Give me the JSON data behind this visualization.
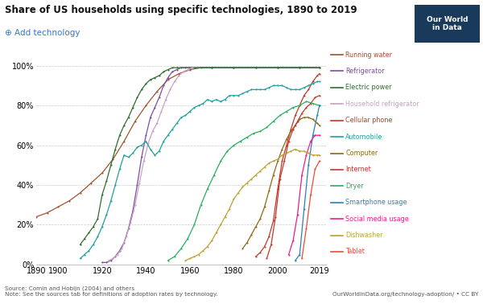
{
  "title": "Share of US households using specific technologies, 1890 to 2019",
  "source_text": "Source: Comin and Hobijn (2004) and others\nNote: See the sources tab for definitions of adoption rates by technology.",
  "url_text": "OurWorldInData.org/technology-adoption/ • CC BY",
  "add_tech_text": "⊕ Add technology",
  "background_color": "#ffffff",
  "technologies": [
    {
      "name": "Running water",
      "color": "#a0522d",
      "data": [
        [
          1890,
          24
        ],
        [
          1895,
          26
        ],
        [
          1900,
          29
        ],
        [
          1905,
          32
        ],
        [
          1910,
          36
        ],
        [
          1915,
          41
        ],
        [
          1920,
          46
        ],
        [
          1925,
          53
        ],
        [
          1930,
          62
        ],
        [
          1935,
          72
        ],
        [
          1940,
          80
        ],
        [
          1945,
          87
        ],
        [
          1950,
          93
        ],
        [
          1955,
          96
        ],
        [
          1960,
          98
        ],
        [
          1965,
          99
        ],
        [
          1970,
          99
        ],
        [
          1980,
          99
        ],
        [
          1990,
          99
        ],
        [
          2000,
          99
        ],
        [
          2010,
          99
        ],
        [
          2019,
          99
        ]
      ]
    },
    {
      "name": "Refrigerator",
      "color": "#7b4f9e",
      "data": [
        [
          1920,
          1
        ],
        [
          1922,
          1
        ],
        [
          1924,
          2
        ],
        [
          1926,
          4
        ],
        [
          1928,
          7
        ],
        [
          1930,
          11
        ],
        [
          1932,
          18
        ],
        [
          1934,
          27
        ],
        [
          1936,
          40
        ],
        [
          1938,
          54
        ],
        [
          1940,
          65
        ],
        [
          1942,
          74
        ],
        [
          1944,
          79
        ],
        [
          1946,
          84
        ],
        [
          1948,
          90
        ],
        [
          1950,
          94
        ],
        [
          1952,
          97
        ],
        [
          1954,
          98
        ],
        [
          1956,
          99
        ],
        [
          1958,
          99
        ],
        [
          1960,
          99
        ],
        [
          1970,
          99
        ],
        [
          1980,
          99
        ],
        [
          1990,
          99
        ],
        [
          2000,
          99
        ],
        [
          2010,
          99
        ],
        [
          2019,
          99
        ]
      ]
    },
    {
      "name": "Electric power",
      "color": "#2d6e2d",
      "data": [
        [
          1910,
          10
        ],
        [
          1912,
          13
        ],
        [
          1914,
          16
        ],
        [
          1916,
          19
        ],
        [
          1918,
          23
        ],
        [
          1920,
          35
        ],
        [
          1922,
          42
        ],
        [
          1924,
          50
        ],
        [
          1926,
          58
        ],
        [
          1928,
          65
        ],
        [
          1930,
          70
        ],
        [
          1932,
          74
        ],
        [
          1934,
          79
        ],
        [
          1936,
          84
        ],
        [
          1938,
          88
        ],
        [
          1940,
          91
        ],
        [
          1942,
          93
        ],
        [
          1944,
          94
        ],
        [
          1946,
          95
        ],
        [
          1948,
          97
        ],
        [
          1950,
          98
        ],
        [
          1952,
          99
        ],
        [
          1954,
          99
        ],
        [
          1960,
          99
        ],
        [
          1970,
          99
        ],
        [
          1980,
          99
        ],
        [
          1990,
          99
        ],
        [
          2000,
          99
        ],
        [
          2010,
          99
        ],
        [
          2019,
          99
        ]
      ]
    },
    {
      "name": "Household refrigerator",
      "color": "#c8a0c8",
      "data": [
        [
          1923,
          2
        ],
        [
          1925,
          3
        ],
        [
          1927,
          5
        ],
        [
          1929,
          8
        ],
        [
          1931,
          14
        ],
        [
          1933,
          21
        ],
        [
          1935,
          30
        ],
        [
          1937,
          41
        ],
        [
          1939,
          52
        ],
        [
          1941,
          61
        ],
        [
          1943,
          67
        ],
        [
          1945,
          71
        ],
        [
          1947,
          77
        ],
        [
          1949,
          83
        ],
        [
          1951,
          88
        ],
        [
          1953,
          92
        ],
        [
          1955,
          95
        ],
        [
          1957,
          97
        ],
        [
          1959,
          98
        ],
        [
          1961,
          99
        ]
      ]
    },
    {
      "name": "Cellular phone",
      "color": "#c0392b",
      "data": [
        [
          1990,
          4
        ],
        [
          1992,
          6
        ],
        [
          1994,
          9
        ],
        [
          1996,
          14
        ],
        [
          1998,
          22
        ],
        [
          2000,
          38
        ],
        [
          2002,
          52
        ],
        [
          2004,
          60
        ],
        [
          2006,
          68
        ],
        [
          2008,
          75
        ],
        [
          2010,
          80
        ],
        [
          2012,
          85
        ],
        [
          2014,
          88
        ],
        [
          2016,
          92
        ],
        [
          2018,
          95
        ],
        [
          2019,
          96
        ]
      ]
    },
    {
      "name": "Automobile",
      "color": "#20a0a0",
      "data": [
        [
          1910,
          3
        ],
        [
          1912,
          5
        ],
        [
          1914,
          7
        ],
        [
          1916,
          10
        ],
        [
          1918,
          14
        ],
        [
          1920,
          19
        ],
        [
          1922,
          25
        ],
        [
          1924,
          32
        ],
        [
          1926,
          40
        ],
        [
          1928,
          48
        ],
        [
          1930,
          55
        ],
        [
          1932,
          54
        ],
        [
          1934,
          56
        ],
        [
          1936,
          59
        ],
        [
          1938,
          60
        ],
        [
          1940,
          62
        ],
        [
          1942,
          58
        ],
        [
          1944,
          55
        ],
        [
          1946,
          57
        ],
        [
          1948,
          62
        ],
        [
          1950,
          65
        ],
        [
          1952,
          68
        ],
        [
          1954,
          71
        ],
        [
          1956,
          74
        ],
        [
          1958,
          75
        ],
        [
          1960,
          77
        ],
        [
          1962,
          79
        ],
        [
          1964,
          80
        ],
        [
          1966,
          81
        ],
        [
          1968,
          83
        ],
        [
          1970,
          82
        ],
        [
          1972,
          83
        ],
        [
          1974,
          82
        ],
        [
          1976,
          83
        ],
        [
          1978,
          85
        ],
        [
          1980,
          85
        ],
        [
          1982,
          85
        ],
        [
          1984,
          86
        ],
        [
          1986,
          87
        ],
        [
          1988,
          88
        ],
        [
          1990,
          88
        ],
        [
          1992,
          88
        ],
        [
          1994,
          88
        ],
        [
          1996,
          89
        ],
        [
          1998,
          90
        ],
        [
          2000,
          90
        ],
        [
          2002,
          90
        ],
        [
          2004,
          89
        ],
        [
          2006,
          88
        ],
        [
          2008,
          88
        ],
        [
          2010,
          88
        ],
        [
          2012,
          89
        ],
        [
          2014,
          90
        ],
        [
          2016,
          91
        ],
        [
          2018,
          92
        ],
        [
          2019,
          92
        ]
      ]
    },
    {
      "name": "Computer",
      "color": "#8b6914",
      "data": [
        [
          1984,
          8
        ],
        [
          1986,
          11
        ],
        [
          1988,
          15
        ],
        [
          1990,
          19
        ],
        [
          1992,
          23
        ],
        [
          1994,
          29
        ],
        [
          1996,
          37
        ],
        [
          1998,
          45
        ],
        [
          2000,
          52
        ],
        [
          2002,
          58
        ],
        [
          2004,
          63
        ],
        [
          2006,
          67
        ],
        [
          2008,
          70
        ],
        [
          2010,
          73
        ],
        [
          2012,
          74
        ],
        [
          2014,
          74
        ],
        [
          2016,
          73
        ],
        [
          2018,
          71
        ],
        [
          2019,
          70
        ]
      ]
    },
    {
      "name": "Internet",
      "color": "#c0392b",
      "data": [
        [
          1995,
          3
        ],
        [
          1997,
          10
        ],
        [
          1999,
          24
        ],
        [
          2001,
          43
        ],
        [
          2003,
          52
        ],
        [
          2005,
          62
        ],
        [
          2007,
          68
        ],
        [
          2009,
          72
        ],
        [
          2011,
          76
        ],
        [
          2013,
          79
        ],
        [
          2015,
          81
        ],
        [
          2017,
          84
        ],
        [
          2019,
          85
        ]
      ]
    },
    {
      "name": "Dryer",
      "color": "#27ae60",
      "data": [
        [
          1950,
          2
        ],
        [
          1953,
          4
        ],
        [
          1956,
          8
        ],
        [
          1959,
          13
        ],
        [
          1962,
          20
        ],
        [
          1965,
          30
        ],
        [
          1968,
          38
        ],
        [
          1971,
          45
        ],
        [
          1974,
          52
        ],
        [
          1977,
          57
        ],
        [
          1980,
          60
        ],
        [
          1983,
          62
        ],
        [
          1986,
          64
        ],
        [
          1989,
          66
        ],
        [
          1992,
          67
        ],
        [
          1995,
          69
        ],
        [
          1998,
          72
        ],
        [
          2001,
          75
        ],
        [
          2004,
          77
        ],
        [
          2007,
          79
        ],
        [
          2010,
          80
        ],
        [
          2013,
          82
        ],
        [
          2016,
          81
        ],
        [
          2019,
          80
        ]
      ]
    },
    {
      "name": "Smartphone usage",
      "color": "#2980b9",
      "data": [
        [
          2008,
          2
        ],
        [
          2010,
          5
        ],
        [
          2012,
          28
        ],
        [
          2014,
          50
        ],
        [
          2016,
          65
        ],
        [
          2018,
          75
        ],
        [
          2019,
          80
        ]
      ]
    },
    {
      "name": "Social media usage",
      "color": "#e91e8c",
      "data": [
        [
          2005,
          5
        ],
        [
          2007,
          12
        ],
        [
          2009,
          25
        ],
        [
          2011,
          45
        ],
        [
          2013,
          55
        ],
        [
          2015,
          62
        ],
        [
          2017,
          65
        ],
        [
          2019,
          65
        ]
      ]
    },
    {
      "name": "Dishwasher",
      "color": "#c0a030",
      "data": [
        [
          1958,
          2
        ],
        [
          1960,
          3
        ],
        [
          1962,
          4
        ],
        [
          1964,
          5
        ],
        [
          1966,
          7
        ],
        [
          1968,
          9
        ],
        [
          1970,
          12
        ],
        [
          1972,
          16
        ],
        [
          1974,
          20
        ],
        [
          1976,
          24
        ],
        [
          1978,
          28
        ],
        [
          1980,
          33
        ],
        [
          1982,
          36
        ],
        [
          1984,
          39
        ],
        [
          1986,
          41
        ],
        [
          1988,
          43
        ],
        [
          1990,
          45
        ],
        [
          1992,
          47
        ],
        [
          1994,
          49
        ],
        [
          1996,
          51
        ],
        [
          1998,
          52
        ],
        [
          2000,
          53
        ],
        [
          2002,
          55
        ],
        [
          2004,
          56
        ],
        [
          2006,
          57
        ],
        [
          2008,
          58
        ],
        [
          2010,
          57
        ],
        [
          2012,
          57
        ],
        [
          2014,
          56
        ],
        [
          2016,
          55
        ],
        [
          2018,
          55
        ],
        [
          2019,
          55
        ]
      ]
    },
    {
      "name": "Tablet",
      "color": "#e74c3c",
      "data": [
        [
          2011,
          3
        ],
        [
          2013,
          18
        ],
        [
          2015,
          35
        ],
        [
          2017,
          48
        ],
        [
          2019,
          52
        ]
      ]
    }
  ]
}
